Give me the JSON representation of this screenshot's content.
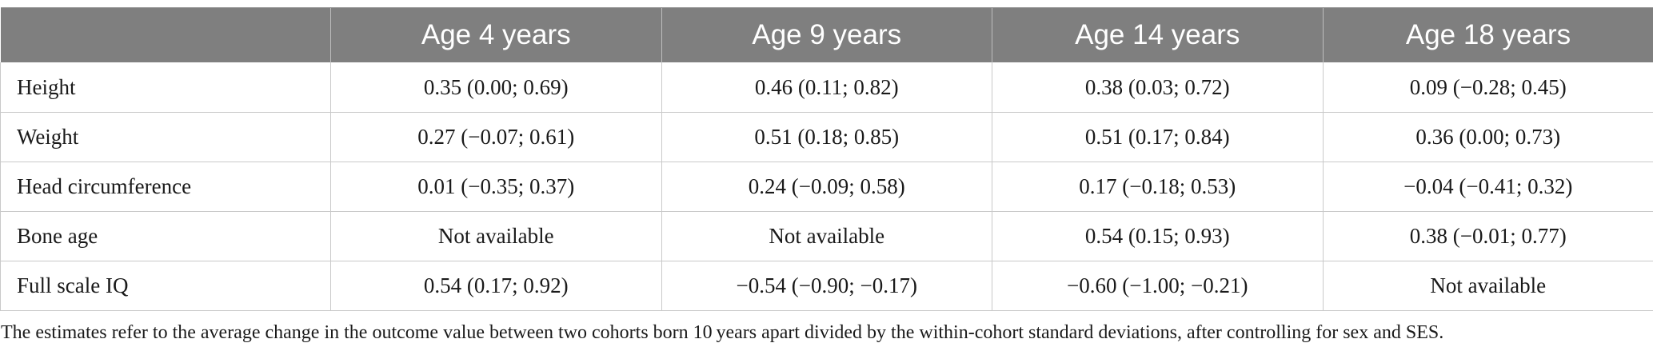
{
  "table": {
    "headers": [
      "",
      "Age 4 years",
      "Age 9 years",
      "Age 14 years",
      "Age 18 years"
    ],
    "rows": [
      {
        "label": "Height",
        "cells": [
          "0.35 (0.00; 0.69)",
          "0.46 (0.11; 0.82)",
          "0.38 (0.03; 0.72)",
          "0.09 (−0.28; 0.45)"
        ]
      },
      {
        "label": "Weight",
        "cells": [
          "0.27 (−0.07; 0.61)",
          "0.51 (0.18; 0.85)",
          "0.51 (0.17; 0.84)",
          "0.36 (0.00; 0.73)"
        ]
      },
      {
        "label": "Head circumference",
        "cells": [
          "0.01 (−0.35; 0.37)",
          "0.24 (−0.09; 0.58)",
          "0.17 (−0.18; 0.53)",
          "−0.04 (−0.41; 0.32)"
        ]
      },
      {
        "label": "Bone age",
        "cells": [
          "Not available",
          "Not available",
          "0.54 (0.15; 0.93)",
          "0.38 (−0.01; 0.77)"
        ]
      },
      {
        "label": "Full scale IQ",
        "cells": [
          "0.54 (0.17; 0.92)",
          "−0.54 (−0.90; −0.17)",
          "−0.60 (−1.00; −0.21)",
          "Not available"
        ]
      }
    ]
  },
  "footnote": "The estimates refer to the average change in the outcome value between two cohorts born 10 years apart divided by the within-cohort standard deviations, after controlling for sex and SES.",
  "colors": {
    "header_background": "#7f7f7f",
    "header_text": "#ffffff",
    "grid_lines": "#c9c9c9"
  }
}
